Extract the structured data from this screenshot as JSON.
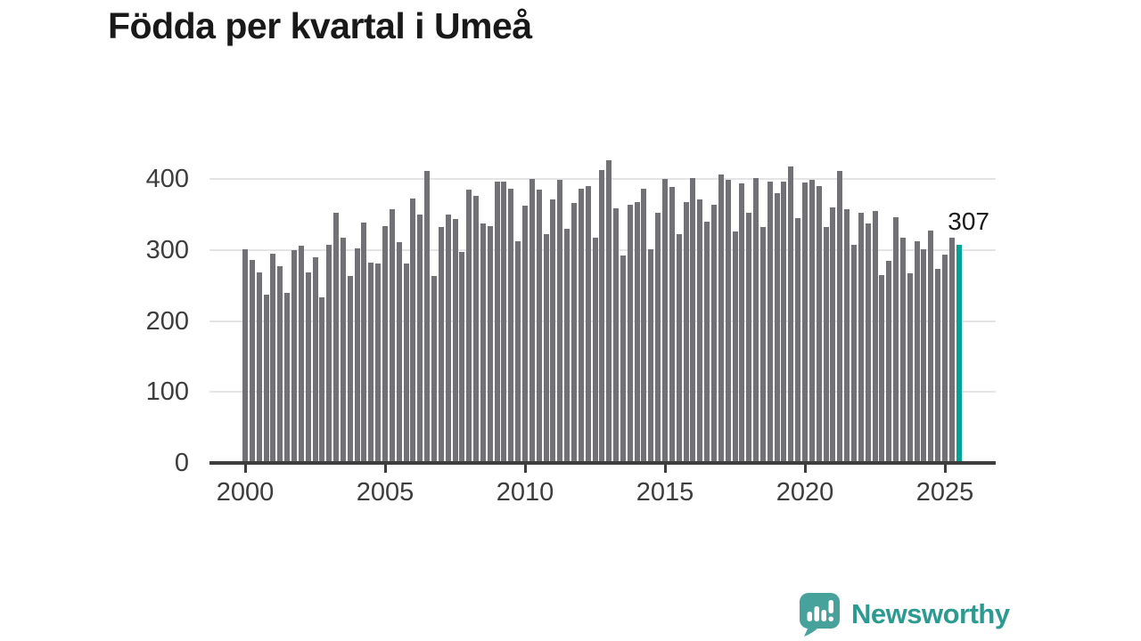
{
  "title": "Födda per kvartal i Umeå",
  "annotation": {
    "label": "307"
  },
  "logo": {
    "text": "Newsworthy",
    "icon": "newsworthy-chart-bubble-icon"
  },
  "colors": {
    "bar": "#717176",
    "highlight": "#00a396",
    "grid": "#e4e4e4",
    "axis": "#3d3d3d",
    "tick_text": "#3d3d3d",
    "title_text": "#191919",
    "logo_teal": "#2d9a92",
    "logo_bubble": "#47a29b"
  },
  "chart_data": {
    "type": "bar",
    "title": "Födda per kvartal i Umeå",
    "x_unit": "quarter",
    "start": "2000Q1",
    "end": "2025Q3",
    "categories": [
      "2000Q1",
      "2000Q2",
      "2000Q3",
      "2000Q4",
      "2001Q1",
      "2001Q2",
      "2001Q3",
      "2001Q4",
      "2002Q1",
      "2002Q2",
      "2002Q3",
      "2002Q4",
      "2003Q1",
      "2003Q2",
      "2003Q3",
      "2003Q4",
      "2004Q1",
      "2004Q2",
      "2004Q3",
      "2004Q4",
      "2005Q1",
      "2005Q2",
      "2005Q3",
      "2005Q4",
      "2006Q1",
      "2006Q2",
      "2006Q3",
      "2006Q4",
      "2007Q1",
      "2007Q2",
      "2007Q3",
      "2007Q4",
      "2008Q1",
      "2008Q2",
      "2008Q3",
      "2008Q4",
      "2009Q1",
      "2009Q2",
      "2009Q3",
      "2009Q4",
      "2010Q1",
      "2010Q2",
      "2010Q3",
      "2010Q4",
      "2011Q1",
      "2011Q2",
      "2011Q3",
      "2011Q4",
      "2012Q1",
      "2012Q2",
      "2012Q3",
      "2012Q4",
      "2013Q1",
      "2013Q2",
      "2013Q3",
      "2013Q4",
      "2014Q1",
      "2014Q2",
      "2014Q3",
      "2014Q4",
      "2015Q1",
      "2015Q2",
      "2015Q3",
      "2015Q4",
      "2016Q1",
      "2016Q2",
      "2016Q3",
      "2016Q4",
      "2017Q1",
      "2017Q2",
      "2017Q3",
      "2017Q4",
      "2018Q1",
      "2018Q2",
      "2018Q3",
      "2018Q4",
      "2019Q1",
      "2019Q2",
      "2019Q3",
      "2019Q4",
      "2020Q1",
      "2020Q2",
      "2020Q3",
      "2020Q4",
      "2021Q1",
      "2021Q2",
      "2021Q3",
      "2021Q4",
      "2022Q1",
      "2022Q2",
      "2022Q3",
      "2022Q4",
      "2023Q1",
      "2023Q2",
      "2023Q3",
      "2023Q4",
      "2024Q1",
      "2024Q2",
      "2024Q3",
      "2024Q4",
      "2025Q1",
      "2025Q2",
      "2025Q3"
    ],
    "values": [
      301,
      286,
      268,
      237,
      295,
      277,
      240,
      300,
      306,
      268,
      290,
      233,
      308,
      352,
      318,
      264,
      303,
      339,
      282,
      281,
      334,
      358,
      311,
      281,
      373,
      350,
      412,
      264,
      333,
      350,
      344,
      297,
      385,
      376,
      338,
      334,
      397,
      397,
      387,
      312,
      363,
      400,
      385,
      323,
      371,
      399,
      330,
      366,
      387,
      390,
      318,
      413,
      427,
      359,
      292,
      364,
      368,
      387,
      301,
      353,
      400,
      389,
      322,
      368,
      401,
      371,
      340,
      364,
      407,
      399,
      326,
      394,
      353,
      401,
      332,
      397,
      380,
      396,
      418,
      345,
      395,
      399,
      390,
      332,
      360,
      411,
      358,
      307,
      353,
      337,
      355,
      265,
      285,
      346,
      317,
      267,
      312,
      301,
      328,
      274,
      294,
      317,
      307
    ],
    "highlight_index": 102,
    "highlight_value_label": "307",
    "ylabel": "",
    "xlabel": "",
    "ylim": [
      0,
      430
    ],
    "yticks": [
      "0",
      "100",
      "200",
      "300",
      "400"
    ],
    "xticks": [
      "2000",
      "2005",
      "2010",
      "2015",
      "2020",
      "2025"
    ],
    "grid": "horizontal",
    "legend": "none"
  }
}
